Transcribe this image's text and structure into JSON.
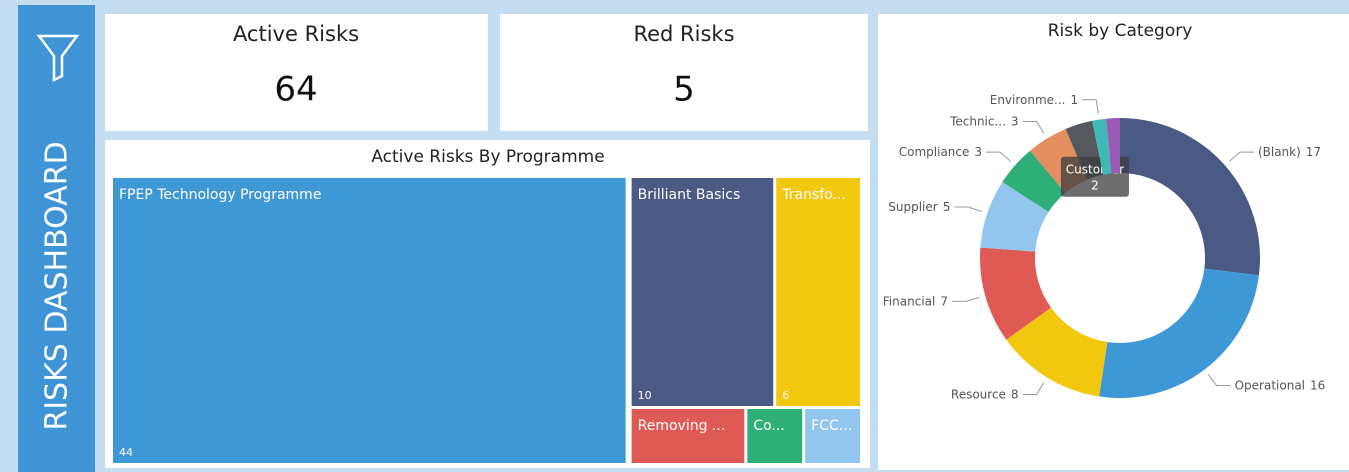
{
  "sidebar": {
    "title": "RISKS DASHBOARD"
  },
  "cards": [
    {
      "label": "Active Risks",
      "value": 64
    },
    {
      "label": "Red Risks",
      "value": 5
    }
  ],
  "chart_data": [
    {
      "type": "treemap",
      "title": "Active Risks By Programme",
      "categories": [
        "FPEP Technology Programme",
        "Brilliant Basics",
        "Transfo...",
        "Removing ...",
        "Co...",
        "FCC..."
      ],
      "values": [
        44,
        10,
        6,
        2,
        1,
        1
      ],
      "value_labels": [
        "44",
        "10",
        "6",
        null,
        null,
        null
      ],
      "colors": [
        "#3f98d6",
        "#4b5a85",
        "#f2c80f",
        "#e05a55",
        "#2fae78",
        "#93c6ee"
      ]
    },
    {
      "type": "donut",
      "title": "Risk by Category",
      "categories": [
        "(Blank)",
        "Operational",
        "Resource",
        "Financial",
        "Supplier",
        "Compliance",
        "Technic...",
        "Customer",
        "Environme...",
        null
      ],
      "values": [
        17,
        16,
        8,
        7,
        5,
        3,
        3,
        2,
        1,
        1
      ],
      "colors": [
        "#4b5a85",
        "#3f98d6",
        "#f2c80f",
        "#e05a55",
        "#93c6ee",
        "#2fae78",
        "#e48e5f",
        "#55595e",
        "#3fb8b8",
        "#9b59b6"
      ],
      "highlighted": "Customer"
    }
  ]
}
